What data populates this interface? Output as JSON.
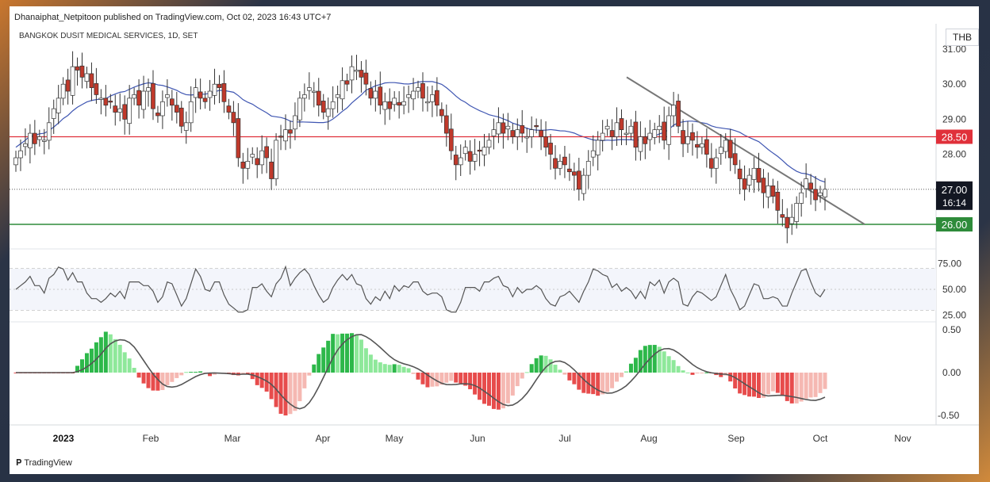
{
  "publisher": "Dhanaiphat_Netpitoon published on TradingView.com, Oct 02, 2023 16:43 UTC+7",
  "symbol": "BANGKOK DUSIT MEDICAL SERVICES, 1D, SET",
  "currency": "THB",
  "watermark": "TradingView",
  "countdown": "16:14",
  "colors": {
    "up": "#ffffff",
    "down": "#c0392b",
    "ma": "#3f56b2",
    "resistance": "#e0303a",
    "support": "#2e8b3a",
    "rsi": "#555555",
    "hist_up_strong": "#2db84a",
    "hist_up_weak": "#8ee89a",
    "hist_dn_strong": "#e74c4c",
    "hist_dn_weak": "#f5b8b2",
    "signal": "#555555"
  },
  "chart_data": {
    "type": "candlestick",
    "x_labels": [
      "2023",
      "Feb",
      "Mar",
      "Apr",
      "May",
      "Jun",
      "Jul",
      "Aug",
      "Sep",
      "Oct",
      "Nov"
    ],
    "price_ticks": [
      "31.00",
      "30.00",
      "29.00",
      "28.00",
      "27.00",
      "26.00"
    ],
    "current_price": "27.00",
    "resistance": {
      "value": 28.5,
      "label": "28.50"
    },
    "support": {
      "value": 26.0,
      "label": "26.00"
    },
    "trendline": {
      "from": [
        "Aug 1",
        30.2
      ],
      "to": [
        "Oct 19",
        26.0
      ]
    },
    "closes": [
      27.9,
      28.1,
      28.3,
      28.6,
      28.3,
      28.5,
      28.4,
      28.9,
      29.3,
      29.6,
      30.0,
      29.8,
      30.5,
      30.4,
      30.2,
      30.3,
      29.9,
      29.7,
      29.6,
      29.4,
      29.5,
      29.2,
      29.3,
      29.0,
      29.6,
      29.7,
      29.4,
      29.8,
      29.9,
      29.3,
      29.1,
      29.5,
      29.7,
      29.4,
      29.2,
      28.8,
      28.9,
      29.5,
      29.9,
      29.6,
      29.5,
      29.8,
      30.0,
      29.9,
      29.5,
      29.2,
      28.9,
      27.9,
      27.6,
      27.8,
      28.0,
      27.7,
      28.1,
      27.9,
      27.3,
      28.4,
      28.5,
      28.7,
      28.6,
      29.1,
      29.6,
      29.7,
      29.9,
      29.8,
      29.4,
      29.2,
      29.3,
      29.5,
      29.7,
      30.1,
      30.0,
      30.5,
      30.4,
      30.2,
      30.0,
      29.6,
      29.8,
      29.4,
      29.5,
      29.3,
      29.6,
      29.4,
      29.5,
      29.7,
      29.8,
      29.9,
      29.6,
      29.5,
      29.7,
      29.4,
      29.1,
      28.6,
      28.1,
      27.7,
      27.9,
      28.2,
      27.8,
      28.0,
      28.1,
      28.2,
      28.4,
      28.7,
      28.9,
      28.6,
      28.8,
      28.5,
      28.7,
      28.6,
      28.5,
      28.7,
      28.8,
      28.5,
      28.2,
      28.0,
      27.6,
      27.8,
      27.7,
      27.5,
      27.4,
      27.0,
      27.4,
      27.8,
      28.1,
      28.4,
      28.6,
      28.8,
      28.5,
      28.9,
      28.7,
      28.6,
      28.8,
      28.2,
      28.5,
      28.3,
      28.6,
      28.7,
      28.8,
      28.4,
      29.1,
      29.4,
      28.8,
      28.3,
      28.5,
      28.4,
      28.2,
      28.3,
      28.0,
      27.6,
      27.9,
      28.2,
      28.4,
      27.9,
      27.7,
      27.3,
      27.0,
      27.4,
      27.6,
      27.2,
      26.9,
      27.1,
      26.8,
      26.4,
      26.2,
      25.9,
      26.2,
      26.6,
      26.9,
      27.3,
      27.0,
      26.7,
      26.9,
      27.0
    ],
    "rsi": {
      "ticks": [
        "75.00",
        "50.00",
        "25.00"
      ],
      "upper": 70,
      "lower": 30
    },
    "macd": {
      "ticks": [
        "0.50",
        "0.00",
        "-0.50"
      ]
    }
  }
}
